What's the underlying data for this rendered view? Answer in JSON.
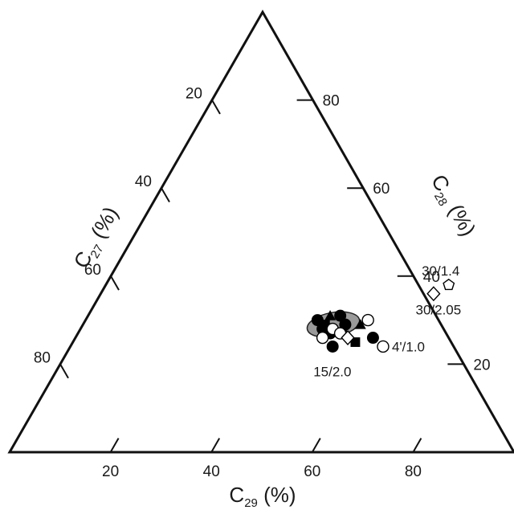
{
  "chart_data": {
    "type": "scatter",
    "ternary": true,
    "axes": {
      "c27": {
        "label_main": "C",
        "label_sub": "27",
        "label_unit": " (%)",
        "ticks": [
          20,
          40,
          60,
          80
        ],
        "tick_labels": [
          "20",
          "40",
          "60",
          "80"
        ]
      },
      "c28": {
        "label_main": "C",
        "label_sub": "28",
        "label_unit": " (%)",
        "ticks": [
          20,
          40,
          60,
          80
        ],
        "tick_labels": [
          "20",
          "40",
          "60",
          "80"
        ]
      },
      "c29": {
        "label_main": "C",
        "label_sub": "29",
        "label_unit": " (%)",
        "ticks": [
          20,
          40,
          60,
          80
        ],
        "tick_labels": [
          "20",
          "40",
          "60",
          "80"
        ]
      }
    },
    "points": [
      {
        "c28": 28,
        "c29": 48,
        "marker": "filled-circle"
      },
      {
        "c28": 30,
        "c29": 46,
        "marker": "filled-circle"
      },
      {
        "c28": 31,
        "c29": 50,
        "marker": "filled-circle"
      },
      {
        "c28": 27,
        "c29": 50,
        "marker": "filled-circle"
      },
      {
        "c28": 29,
        "c29": 52,
        "marker": "filled-circle"
      },
      {
        "c28": 24,
        "c29": 52,
        "marker": "filled-circle"
      },
      {
        "c28": 26,
        "c29": 59,
        "marker": "filled-circle"
      },
      {
        "c28": 31,
        "c29": 48,
        "marker": "filled-triangle"
      },
      {
        "c28": 27,
        "c29": 53,
        "marker": "filled-triangle"
      },
      {
        "c28": 29,
        "c29": 55,
        "marker": "filled-triangle"
      },
      {
        "c28": 29,
        "c29": 48,
        "marker": "filled-square"
      },
      {
        "c28": 25,
        "c29": 56,
        "marker": "filled-square"
      },
      {
        "c28": 28,
        "c29": 50,
        "marker": "open-circle"
      },
      {
        "c28": 26,
        "c29": 49,
        "marker": "open-circle"
      },
      {
        "c28": 27,
        "c29": 52,
        "marker": "open-circle"
      },
      {
        "c28": 30,
        "c29": 56,
        "marker": "open-circle"
      },
      {
        "c28": 24,
        "c29": 62,
        "marker": "open-circle"
      },
      {
        "c28": 26,
        "c29": 54,
        "marker": "open-diamond"
      },
      {
        "c28": 36,
        "c29": 66,
        "marker": "open-diamond"
      },
      {
        "c28": 38,
        "c29": 68,
        "marker": "open-pentagon"
      }
    ],
    "region": {
      "center": {
        "c28": 29,
        "c29": 49
      }
    },
    "annotations": [
      {
        "text": "30/1.4",
        "near": {
          "c28": 38,
          "c29": 68
        },
        "position": "above"
      },
      {
        "text": "30/2.05",
        "near": {
          "c28": 36,
          "c29": 66
        },
        "position": "below"
      },
      {
        "text": "4'/1.0",
        "near": {
          "c28": 24,
          "c29": 62
        },
        "position": "right"
      },
      {
        "text": "15/2.0",
        "near": {
          "c28": 22,
          "c29": 52
        },
        "position": "below"
      }
    ]
  }
}
